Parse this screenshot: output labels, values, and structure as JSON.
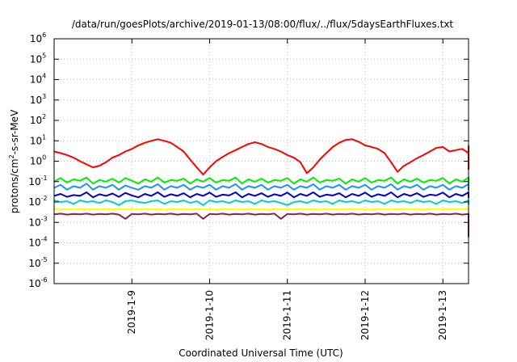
{
  "chart_data": {
    "type": "line",
    "title": "/data/run/goesPlots/archive/2019-01-13/08:00/flux/../flux/5daysEarthFluxes.txt",
    "xlabel": "Coordinated Universal Time (UTC)",
    "ylabel": {
      "before": "protons/cm",
      "sup": "2",
      "after": "-s-sr-MeV"
    },
    "x_unit": "days since 2019-01-08 00:00 UTC",
    "xlim": [
      0,
      5.33
    ],
    "y_scale": "log",
    "ylim_exp": [
      -6,
      6
    ],
    "y_ticks": [
      {
        "exp": -6,
        "base": "10",
        "sup": "-6"
      },
      {
        "exp": -5,
        "base": "10",
        "sup": "-5"
      },
      {
        "exp": -4,
        "base": "10",
        "sup": "-4"
      },
      {
        "exp": -3,
        "base": "10",
        "sup": "-3"
      },
      {
        "exp": -2,
        "base": "10",
        "sup": "-2"
      },
      {
        "exp": -1,
        "base": "10",
        "sup": "-1"
      },
      {
        "exp": 0,
        "base": "10",
        "sup": "0"
      },
      {
        "exp": 1,
        "base": "10",
        "sup": "1"
      },
      {
        "exp": 2,
        "base": "10",
        "sup": "2"
      },
      {
        "exp": 3,
        "base": "10",
        "sup": "3"
      },
      {
        "exp": 4,
        "base": "10",
        "sup": "4"
      },
      {
        "exp": 5,
        "base": "10",
        "sup": "5"
      },
      {
        "exp": 6,
        "base": "10",
        "sup": "6"
      }
    ],
    "x_ticks": [
      {
        "x": 1,
        "label": "2019-1-9"
      },
      {
        "x": 2,
        "label": "2019-1-10"
      },
      {
        "x": 3,
        "label": "2019-1-11"
      },
      {
        "x": 4,
        "label": "2019-1-12"
      },
      {
        "x": 5,
        "label": "2019-1-13"
      }
    ],
    "grid": true,
    "series_time_step_days": 0.083333,
    "series": [
      {
        "color": "#ff0000",
        "values": [
          3.0,
          2.5,
          2.0,
          1.5,
          1.0,
          0.7,
          0.5,
          0.6,
          0.9,
          1.5,
          2.0,
          3.0,
          4.0,
          6.0,
          8.0,
          10.0,
          12.0,
          10.0,
          8.0,
          5.0,
          3.0,
          1.2,
          0.5,
          0.22,
          0.5,
          1.0,
          1.6,
          2.5,
          3.5,
          5.0,
          7.0,
          8.5,
          7.0,
          5.0,
          4.0,
          3.0,
          2.0,
          1.5,
          0.9,
          0.26,
          0.5,
          1.2,
          2.5,
          5.0,
          8.0,
          11.0,
          12.0,
          9.0,
          6.0,
          5.0,
          4.0,
          2.5,
          0.9,
          0.3,
          0.6,
          0.9,
          1.4,
          2.0,
          3.0,
          4.5,
          5.0,
          3.0,
          3.5,
          4.0,
          2.5,
          2.0,
          1.5,
          1.3,
          1.2,
          1.0,
          1.2,
          1.5,
          2.0,
          3.0,
          4.0,
          5.5,
          5.0,
          4.0,
          2.5,
          1.5,
          1.2,
          0.8,
          0.6,
          0.4,
          0.5,
          0.5
        ]
      },
      {
        "color": "#00ee00",
        "values": [
          0.1,
          0.15,
          0.09,
          0.13,
          0.11,
          0.16,
          0.08,
          0.12,
          0.1,
          0.14,
          0.09,
          0.15,
          0.11,
          0.08,
          0.13,
          0.1,
          0.16,
          0.09,
          0.12,
          0.11,
          0.14,
          0.08,
          0.13,
          0.1,
          0.15,
          0.09,
          0.12,
          0.11,
          0.16,
          0.08,
          0.13,
          0.1,
          0.14,
          0.09,
          0.12,
          0.11,
          0.15,
          0.08,
          0.13,
          0.1,
          0.16,
          0.09,
          0.12,
          0.11,
          0.14,
          0.08,
          0.13,
          0.1,
          0.15,
          0.09,
          0.12,
          0.11,
          0.16,
          0.08,
          0.13,
          0.1,
          0.14,
          0.09,
          0.12,
          0.11,
          0.15,
          0.08,
          0.13,
          0.1,
          0.16,
          0.09,
          0.12,
          0.11,
          0.14,
          0.08,
          0.13,
          0.1,
          0.15,
          0.09,
          0.12,
          0.11,
          0.16,
          0.08,
          0.13,
          0.1,
          0.14,
          0.09,
          0.12,
          0.11,
          0.1,
          0.12
        ]
      },
      {
        "color": "#1e90ff",
        "values": [
          0.05,
          0.07,
          0.04,
          0.06,
          0.05,
          0.08,
          0.04,
          0.06,
          0.05,
          0.07,
          0.04,
          0.065,
          0.05,
          0.04,
          0.06,
          0.05,
          0.075,
          0.04,
          0.06,
          0.05,
          0.07,
          0.04,
          0.06,
          0.05,
          0.07,
          0.04,
          0.06,
          0.05,
          0.075,
          0.04,
          0.06,
          0.05,
          0.07,
          0.04,
          0.06,
          0.05,
          0.07,
          0.04,
          0.06,
          0.05,
          0.075,
          0.04,
          0.06,
          0.05,
          0.07,
          0.04,
          0.06,
          0.05,
          0.07,
          0.04,
          0.06,
          0.05,
          0.075,
          0.04,
          0.06,
          0.05,
          0.07,
          0.04,
          0.06,
          0.05,
          0.07,
          0.04,
          0.06,
          0.05,
          0.075,
          0.04,
          0.06,
          0.05,
          0.07,
          0.04,
          0.06,
          0.05,
          0.07,
          0.04,
          0.06,
          0.05,
          0.075,
          0.04,
          0.06,
          0.05,
          0.07,
          0.04,
          0.06,
          0.05,
          0.05,
          0.06
        ]
      },
      {
        "color": "#0000cd",
        "values": [
          0.02,
          0.025,
          0.018,
          0.022,
          0.02,
          0.03,
          0.017,
          0.024,
          0.02,
          0.026,
          0.018,
          0.028,
          0.021,
          0.017,
          0.025,
          0.02,
          0.03,
          0.018,
          0.024,
          0.02,
          0.027,
          0.017,
          0.025,
          0.02,
          0.029,
          0.018,
          0.023,
          0.021,
          0.03,
          0.017,
          0.025,
          0.02,
          0.027,
          0.018,
          0.024,
          0.02,
          0.029,
          0.017,
          0.025,
          0.02,
          0.03,
          0.018,
          0.023,
          0.021,
          0.027,
          0.017,
          0.025,
          0.02,
          0.029,
          0.018,
          0.024,
          0.02,
          0.03,
          0.017,
          0.025,
          0.02,
          0.027,
          0.018,
          0.023,
          0.021,
          0.029,
          0.017,
          0.025,
          0.02,
          0.03,
          0.018,
          0.024,
          0.02,
          0.027,
          0.017,
          0.025,
          0.02,
          0.029,
          0.018,
          0.023,
          0.021,
          0.03,
          0.017,
          0.025,
          0.02,
          0.027,
          0.018,
          0.024,
          0.02,
          0.018,
          0.02
        ]
      },
      {
        "color": "#00ced1",
        "values": [
          0.012,
          0.01,
          0.011,
          0.008,
          0.012,
          0.01,
          0.011,
          0.009,
          0.012,
          0.01,
          0.007,
          0.011,
          0.012,
          0.01,
          0.009,
          0.011,
          0.012,
          0.008,
          0.011,
          0.01,
          0.012,
          0.009,
          0.011,
          0.007,
          0.012,
          0.01,
          0.011,
          0.009,
          0.012,
          0.01,
          0.011,
          0.008,
          0.012,
          0.01,
          0.011,
          0.009,
          0.007,
          0.01,
          0.011,
          0.009,
          0.012,
          0.01,
          0.011,
          0.008,
          0.012,
          0.01,
          0.011,
          0.009,
          0.012,
          0.01,
          0.011,
          0.008,
          0.012,
          0.01,
          0.011,
          0.009,
          0.012,
          0.01,
          0.011,
          0.008,
          0.012,
          0.01,
          0.011,
          0.009,
          0.012,
          0.01,
          0.011,
          0.008,
          0.012,
          0.01,
          0.011,
          0.009,
          0.012,
          0.01,
          0.011,
          0.008,
          0.012,
          0.01,
          0.011,
          0.009,
          0.012,
          0.01,
          0.011,
          0.008,
          0.01,
          0.011
        ]
      },
      {
        "color": "#ffff00",
        "values": [
          0.0045,
          0.0042,
          0.0045,
          0.0044,
          0.0045,
          0.0043,
          0.0045,
          0.0044,
          0.0045,
          0.0042,
          0.0045,
          0.0044,
          0.0045,
          0.0043,
          0.0045,
          0.0044,
          0.0045,
          0.0042,
          0.0045,
          0.0044,
          0.0045,
          0.0043,
          0.0045,
          0.0044,
          0.0045,
          0.0042,
          0.0045,
          0.0044,
          0.0045,
          0.0043,
          0.0045,
          0.0044,
          0.0045,
          0.0042,
          0.0045,
          0.0044,
          0.0045,
          0.0043,
          0.0045,
          0.0044,
          0.0045,
          0.0042,
          0.0045,
          0.0044,
          0.0045,
          0.0043,
          0.0045,
          0.0044,
          0.0045,
          0.0042,
          0.0045,
          0.0044,
          0.0045,
          0.0043,
          0.0045,
          0.0044,
          0.0045,
          0.0042,
          0.0045,
          0.0044,
          0.0045,
          0.0043,
          0.0045,
          0.0044,
          0.0045,
          0.0042,
          0.0045,
          0.0044,
          0.0045,
          0.0043,
          0.0045,
          0.0044,
          0.0045,
          0.0042,
          0.0045,
          0.0044,
          0.0045,
          0.0043,
          0.0045,
          0.0044,
          0.0045,
          0.0042,
          0.0045,
          0.0044,
          0.0045,
          0.0044
        ]
      },
      {
        "color": "#8b2252",
        "values": [
          0.0025,
          0.0027,
          0.0024,
          0.0026,
          0.0025,
          0.0027,
          0.0024,
          0.0026,
          0.0025,
          0.0027,
          0.0024,
          0.0015,
          0.0026,
          0.0025,
          0.0027,
          0.0024,
          0.0026,
          0.0025,
          0.0027,
          0.0024,
          0.0026,
          0.0025,
          0.0027,
          0.0015,
          0.0026,
          0.0025,
          0.0027,
          0.0024,
          0.0026,
          0.0025,
          0.0027,
          0.0024,
          0.0026,
          0.0025,
          0.0027,
          0.0015,
          0.0026,
          0.0025,
          0.0027,
          0.0024,
          0.0026,
          0.0025,
          0.0027,
          0.0024,
          0.0026,
          0.0025,
          0.0027,
          0.0024,
          0.0026,
          0.0025,
          0.0027,
          0.0024,
          0.0026,
          0.0025,
          0.0027,
          0.0024,
          0.0026,
          0.0025,
          0.0027,
          0.0024,
          0.0026,
          0.0025,
          0.0027,
          0.0024,
          0.0026,
          0.0025,
          0.0027,
          0.0024,
          0.0026,
          0.0025,
          0.0027,
          0.0024,
          0.0026,
          0.0025,
          0.0027,
          0.0024,
          0.0026,
          0.0025,
          0.0027,
          0.0024,
          0.0026,
          0.0025,
          0.0027,
          0.0024,
          0.0002,
          0.0025
        ]
      }
    ]
  }
}
